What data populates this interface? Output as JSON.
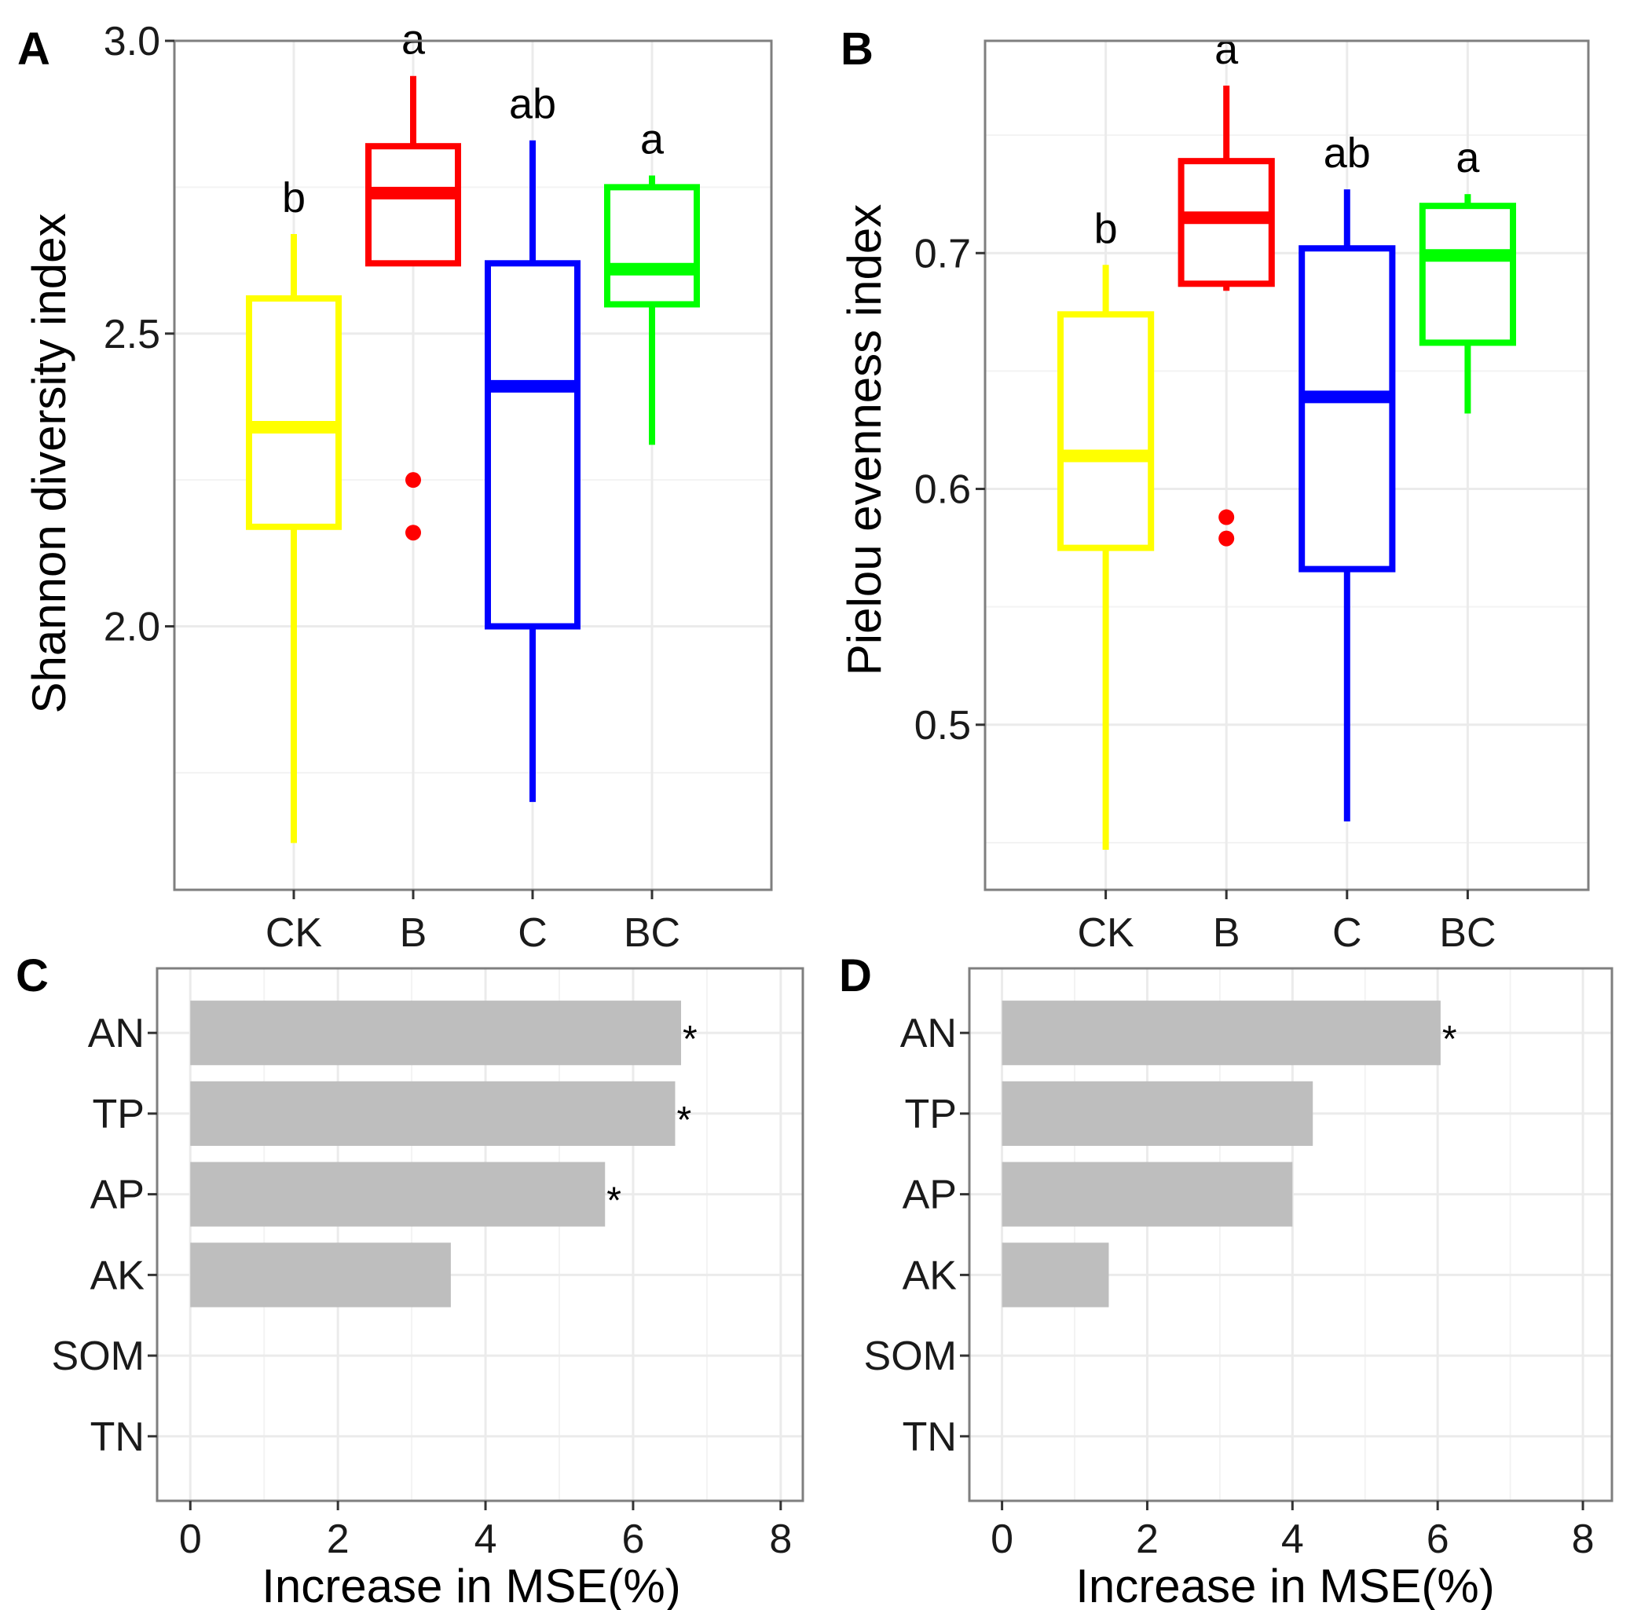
{
  "chart_data": [
    {
      "panel": "A",
      "type": "box",
      "ylabel": "Shannon diversity index",
      "ylim": [
        1.55,
        3.0
      ],
      "yticks": [
        2.0,
        2.5,
        3.0
      ],
      "ytick_labels": [
        "2.0",
        "2.5",
        "3.0"
      ],
      "categories": [
        "CK",
        "B",
        "C",
        "BC"
      ],
      "colors": [
        "#ffff00",
        "#ff0000",
        "#0000ff",
        "#00ff00"
      ],
      "series": [
        {
          "name": "CK",
          "low": 1.63,
          "q1": 2.17,
          "median": 2.34,
          "q3": 2.56,
          "high": 2.67,
          "outliers": [],
          "letter": "b"
        },
        {
          "name": "B",
          "low": 2.62,
          "q1": 2.62,
          "median": 2.74,
          "q3": 2.82,
          "high": 2.94,
          "outliers": [
            2.25,
            2.16
          ],
          "letter": "a"
        },
        {
          "name": "C",
          "low": 1.7,
          "q1": 2.0,
          "median": 2.41,
          "q3": 2.62,
          "high": 2.83,
          "outliers": [],
          "letter": "ab"
        },
        {
          "name": "BC",
          "low": 2.31,
          "q1": 2.55,
          "median": 2.61,
          "q3": 2.75,
          "high": 2.77,
          "outliers": [],
          "letter": "a"
        }
      ]
    },
    {
      "panel": "B",
      "type": "box",
      "ylabel": "Pielou evenness index",
      "ylim": [
        0.43,
        0.79
      ],
      "yticks": [
        0.5,
        0.6,
        0.7
      ],
      "ytick_labels": [
        "0.5",
        "0.6",
        "0.7"
      ],
      "categories": [
        "CK",
        "B",
        "C",
        "BC"
      ],
      "colors": [
        "#ffff00",
        "#ff0000",
        "#0000ff",
        "#00ff00"
      ],
      "series": [
        {
          "name": "CK",
          "low": 0.447,
          "q1": 0.575,
          "median": 0.614,
          "q3": 0.674,
          "high": 0.695,
          "outliers": [],
          "letter": "b"
        },
        {
          "name": "B",
          "low": 0.684,
          "q1": 0.687,
          "median": 0.715,
          "q3": 0.739,
          "high": 0.771,
          "outliers": [
            0.588,
            0.579
          ],
          "letter": "a"
        },
        {
          "name": "C",
          "low": 0.459,
          "q1": 0.566,
          "median": 0.639,
          "q3": 0.702,
          "high": 0.727,
          "outliers": [],
          "letter": "ab"
        },
        {
          "name": "BC",
          "low": 0.632,
          "q1": 0.662,
          "median": 0.699,
          "q3": 0.72,
          "high": 0.725,
          "outliers": [],
          "letter": "a"
        }
      ]
    },
    {
      "panel": "C",
      "type": "bar",
      "orientation": "horizontal",
      "xlabel": "Increase in MSE(%)",
      "xlim": [
        -0.45,
        8.3
      ],
      "xticks": [
        0,
        2,
        4,
        6,
        8
      ],
      "xtick_labels": [
        "0",
        "2",
        "4",
        "6",
        "8"
      ],
      "categories": [
        "AN",
        "TP",
        "AP",
        "AK",
        "SOM",
        "TN"
      ],
      "values": [
        6.65,
        6.57,
        5.62,
        3.53,
        0,
        0
      ],
      "significant": [
        "*",
        "*",
        "*",
        "",
        "",
        ""
      ],
      "bar_color": "#bebebe"
    },
    {
      "panel": "D",
      "type": "bar",
      "orientation": "horizontal",
      "xlabel": "Increase in MSE(%)",
      "xlim": [
        -0.45,
        8.4
      ],
      "xticks": [
        0,
        2,
        4,
        6,
        8
      ],
      "xtick_labels": [
        "0",
        "2",
        "4",
        "6",
        "8"
      ],
      "categories": [
        "AN",
        "TP",
        "AP",
        "AK",
        "SOM",
        "TN"
      ],
      "values": [
        6.04,
        4.28,
        4.0,
        1.47,
        0,
        0
      ],
      "significant": [
        "*",
        "",
        "",
        "",
        "",
        ""
      ],
      "bar_color": "#bebebe"
    }
  ]
}
